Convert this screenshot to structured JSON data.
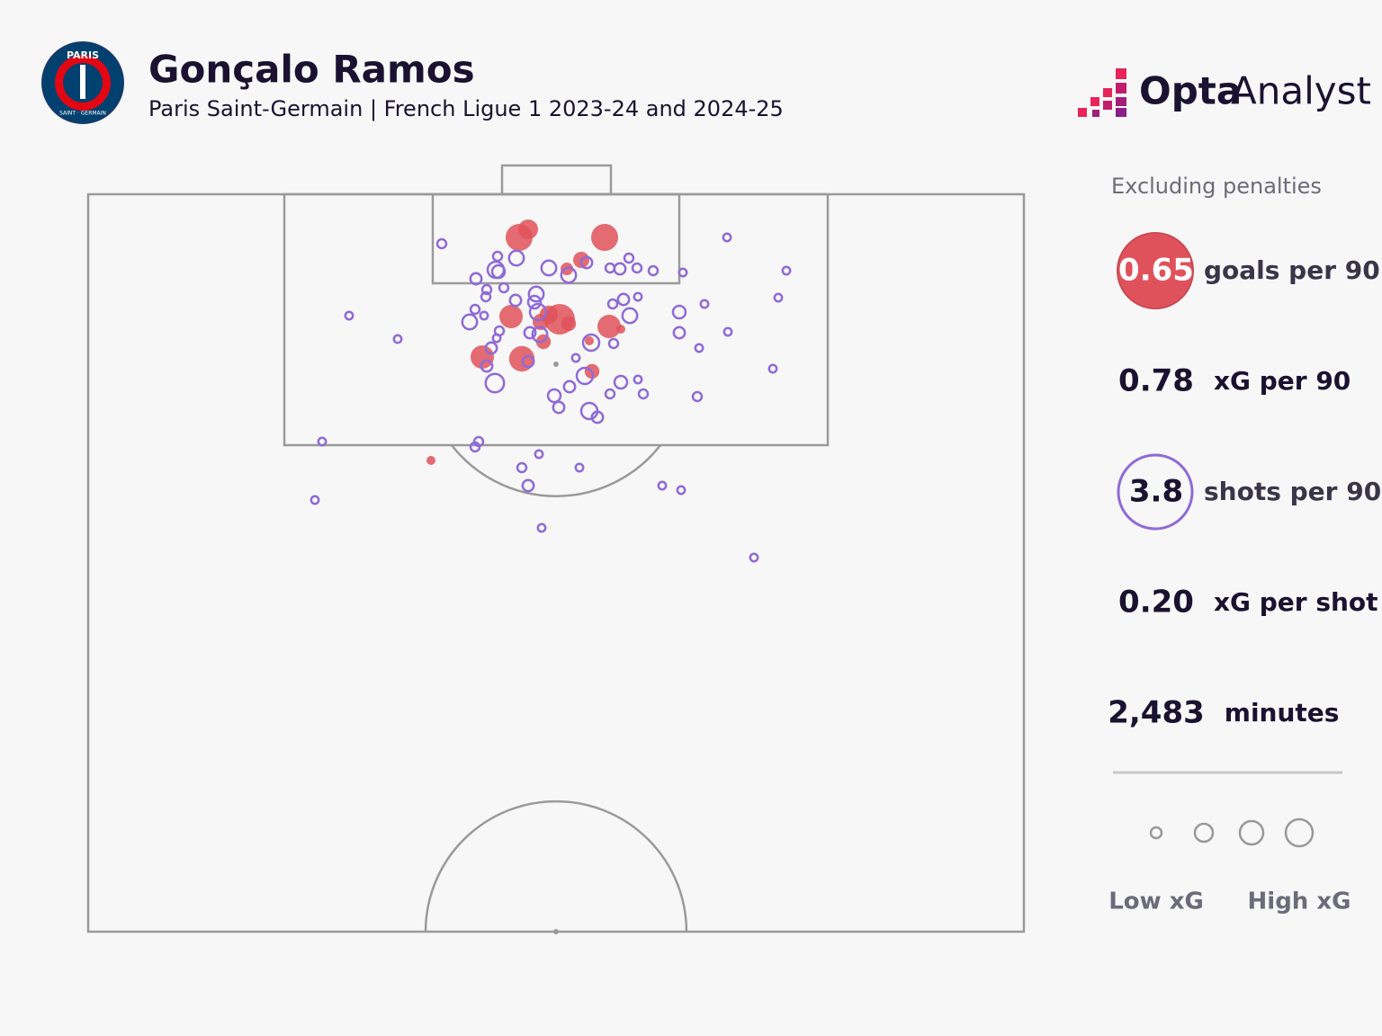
{
  "header": {
    "title": "Gonçalo Ramos",
    "subtitle": "Paris Saint-Germain | French Ligue 1 2023-24 and 2024-25"
  },
  "crest": {
    "top": "PARIS",
    "bottom": "SAINT · GERMAIN"
  },
  "brand": {
    "bold": "Opta",
    "light": "Analyst"
  },
  "note": "Excluding penalties",
  "stats": [
    {
      "value": "0.65",
      "label": "goals per 90"
    },
    {
      "value": "0.78",
      "label": "xG per 90"
    },
    {
      "value": "3.8",
      "label": "shots per 90"
    },
    {
      "value": "0.20",
      "label": "xG per shot"
    },
    {
      "value": "2,483",
      "label": "minutes"
    }
  ],
  "legend": {
    "low": "Low xG",
    "high": "High xG"
  },
  "chart_data": {
    "type": "scatter",
    "xlim": [
      0,
      104
    ],
    "ylim": [
      0,
      82
    ],
    "series": [
      {
        "color": "#e0525b",
        "x": [
          48.9,
          47.9,
          57.4,
          53.2,
          54.8,
          47,
          52.4,
          50.3,
          51.2,
          53.4,
          57.9,
          59.2,
          55.7,
          50.6,
          43.8,
          48.2,
          56,
          38.1
        ],
        "values": [
          3.9,
          4.8,
          4.8,
          8.3,
          7.3,
          13.6,
          13.9,
          14.2,
          13.4,
          14.4,
          14.7,
          15,
          16.3,
          16.4,
          18.1,
          18.3,
          19.7,
          29.6
        ],
        "sizes": [
          0.2,
          0.3,
          0.3,
          0.1,
          0.15,
          0.25,
          0.35,
          0.15,
          0.18,
          0.13,
          0.25,
          0.05,
          0.05,
          0.13,
          0.25,
          0.28,
          0.13,
          0.05
        ]
      },
      {
        "color": "#8f6bd6",
        "x": [
          39.3,
          45.5,
          47.6,
          45.3,
          45.6,
          43.1,
          46.2,
          44.3,
          44.2,
          47.5,
          49.8,
          49.6,
          51.2,
          53.4,
          55.4,
          58,
          59.1,
          60.1,
          61,
          62.8,
          66.1,
          71,
          77.6,
          76.7,
          58.3,
          59.5,
          61.1,
          60.2,
          65.7,
          68.5,
          65.7,
          71.1,
          67.9,
          76.1,
          29,
          34.4,
          43,
          42.4,
          44,
          45.7,
          45.4,
          44.8,
          50,
          49.1,
          50.2,
          58.4,
          55.9,
          48.9,
          44.3,
          45.2,
          54.2,
          55.2,
          51.8,
          53.5,
          52.3,
          55.7,
          56.6,
          58,
          59.2,
          61.1,
          61.7,
          67.7,
          43.4,
          43,
          26,
          25.2,
          48.2,
          50.1,
          54.6,
          48.9,
          50.4,
          63.8,
          65.9,
          74
        ],
        "values": [
          5.5,
          6.9,
          7.1,
          8.4,
          8.6,
          9.4,
          10.4,
          10.6,
          11.4,
          11.8,
          11.1,
          12,
          8.2,
          9,
          7.6,
          8.2,
          8.3,
          7.1,
          8.2,
          8.5,
          8.7,
          4.8,
          8.5,
          11.5,
          12.2,
          11.7,
          11.4,
          13.5,
          13.1,
          12.2,
          15.4,
          15.3,
          17.1,
          19.4,
          13.5,
          16.1,
          12.8,
          14.2,
          13.5,
          15.2,
          16,
          17.1,
          13.1,
          15.4,
          15.6,
          16.6,
          16.5,
          18.6,
          19.1,
          21,
          18.2,
          20.2,
          22.4,
          21.4,
          23.7,
          24.1,
          24.8,
          22.2,
          20.9,
          20.6,
          22.2,
          22.5,
          27.5,
          28.1,
          27.5,
          34,
          30.4,
          28.9,
          30.4,
          32.4,
          37.1,
          32.4,
          32.9,
          40.4
        ],
        "sizes": [
          0.05,
          0.05,
          0.13,
          0.15,
          0.1,
          0.08,
          0.05,
          0.05,
          0.05,
          0.08,
          0.13,
          0.1,
          0.13,
          0.13,
          0.08,
          0.05,
          0.08,
          0.05,
          0.05,
          0.05,
          0.03,
          0.03,
          0.03,
          0.03,
          0.05,
          0.08,
          0.03,
          0.13,
          0.1,
          0.03,
          0.08,
          0.03,
          0.03,
          0.03,
          0.03,
          0.03,
          0.05,
          0.13,
          0.03,
          0.05,
          0.03,
          0.08,
          0.15,
          0.08,
          0.13,
          0.05,
          0.15,
          0.08,
          0.08,
          0.18,
          0.03,
          0.15,
          0.1,
          0.08,
          0.08,
          0.15,
          0.08,
          0.05,
          0.1,
          0.03,
          0.05,
          0.05,
          0.05,
          0.05,
          0.03,
          0.03,
          0.05,
          0.03,
          0.03,
          0.08,
          0.03,
          0.03,
          0.03,
          0.03
        ]
      }
    ]
  }
}
